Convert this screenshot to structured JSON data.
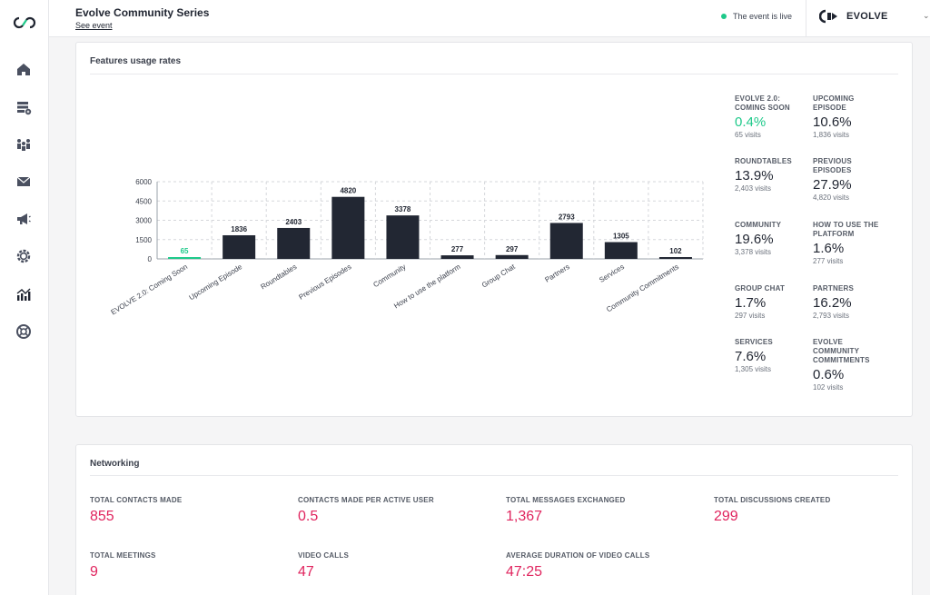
{
  "header": {
    "title": "Evolve Community Series",
    "see_event": "See event",
    "live_status": "The event is live",
    "brand_name": "EVOLVE"
  },
  "sidebar": {
    "items": [
      {
        "icon": "home-icon"
      },
      {
        "icon": "event-settings-icon"
      },
      {
        "icon": "people-icon"
      },
      {
        "icon": "mail-icon"
      },
      {
        "icon": "megaphone-icon"
      },
      {
        "icon": "gear-icon"
      },
      {
        "icon": "analytics-icon"
      },
      {
        "icon": "help-lifebuoy-icon"
      }
    ]
  },
  "features": {
    "title": "Features usage rates",
    "stats": [
      {
        "label": "EVOLVE 2.0: COMING SOON",
        "pct": "0.4%",
        "visits": "65 visits",
        "highlight": true
      },
      {
        "label": "UPCOMING EPISODE",
        "pct": "10.6%",
        "visits": "1,836 visits"
      },
      {
        "label": "ROUNDTABLES",
        "pct": "13.9%",
        "visits": "2,403 visits"
      },
      {
        "label": "PREVIOUS EPISODES",
        "pct": "27.9%",
        "visits": "4,820 visits"
      },
      {
        "label": "COMMUNITY",
        "pct": "19.6%",
        "visits": "3,378 visits"
      },
      {
        "label": "HOW TO USE THE PLATFORM",
        "pct": "1.6%",
        "visits": "277 visits"
      },
      {
        "label": "GROUP CHAT",
        "pct": "1.7%",
        "visits": "297 visits"
      },
      {
        "label": "PARTNERS",
        "pct": "16.2%",
        "visits": "2,793 visits"
      },
      {
        "label": "SERVICES",
        "pct": "7.6%",
        "visits": "1,305 visits"
      },
      {
        "label": "EVOLVE COMMUNITY COMMITMENTS",
        "pct": "0.6%",
        "visits": "102 visits"
      }
    ]
  },
  "chart_data": {
    "type": "bar",
    "categories": [
      "EVOLVE 2.0: Coming Soon",
      "Upcoming Episode",
      "Roundtables",
      "Previous Episodes",
      "Community",
      "How to use the platform",
      "Group Chat",
      "Partners",
      "Services",
      "Community Commitments"
    ],
    "values": [
      65,
      1836,
      2403,
      4820,
      3378,
      277,
      297,
      2793,
      1305,
      102
    ],
    "yticks": [
      0,
      1500,
      3000,
      4500,
      6000
    ],
    "ylim": [
      0,
      6000
    ],
    "grid": true,
    "highlight_index": 0,
    "colors": {
      "bar": "#222733",
      "highlight": "#1ec98a"
    }
  },
  "networking": {
    "title": "Networking",
    "metrics": [
      {
        "label": "TOTAL CONTACTS MADE",
        "value": "855"
      },
      {
        "label": "CONTACTS MADE PER ACTIVE USER",
        "value": "0.5"
      },
      {
        "label": "TOTAL MESSAGES EXCHANGED",
        "value": "1,367"
      },
      {
        "label": "TOTAL DISCUSSIONS CREATED",
        "value": "299"
      },
      {
        "label": "TOTAL MEETINGS",
        "value": "9"
      },
      {
        "label": "VIDEO CALLS",
        "value": "47"
      },
      {
        "label": "AVERAGE DURATION OF VIDEO CALLS",
        "value": "47:25"
      }
    ]
  }
}
